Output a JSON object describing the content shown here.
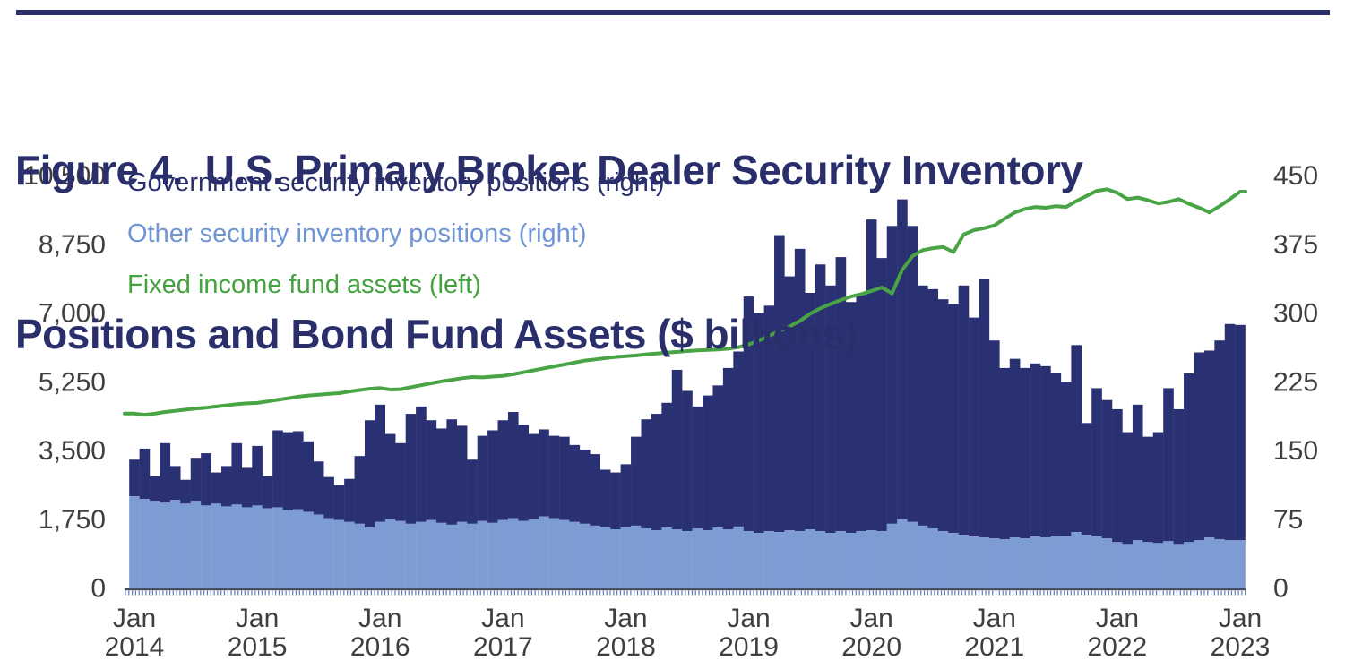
{
  "header": {
    "title_line1": "Figure 4.  U.S. Primary Broker Dealer Security Inventory",
    "title_line2": "Positions and Bond Fund Assets ($ billions)",
    "title_color": "#2a2f6b",
    "rule_color": "#2a2f6b"
  },
  "legend": {
    "items": [
      {
        "label": "Government security inventory positions (right)",
        "color": "#2a2f6b"
      },
      {
        "label": "Other security inventory positions (right)",
        "color": "#6f95d4"
      },
      {
        "label": "Fixed income fund assets (left)",
        "color": "#44a33f"
      }
    ]
  },
  "chart_data": {
    "type": "combo",
    "title": "Figure 4. U.S. Primary Broker Dealer Security Inventory Positions and Bond Fund Assets ($ billions)",
    "grid": "off",
    "background": "#ffffff",
    "x_axis": {
      "start": "2014-01",
      "interval": "monthly",
      "count": 109,
      "tick_labels": [
        {
          "month": "Jan",
          "year": "2014"
        },
        {
          "month": "Jan",
          "year": "2015"
        },
        {
          "month": "Jan",
          "year": "2016"
        },
        {
          "month": "Jan",
          "year": "2017"
        },
        {
          "month": "Jan",
          "year": "2018"
        },
        {
          "month": "Jan",
          "year": "2019"
        },
        {
          "month": "Jan",
          "year": "2020"
        },
        {
          "month": "Jan",
          "year": "2021"
        },
        {
          "month": "Jan",
          "year": "2022"
        },
        {
          "month": "Jan",
          "year": "2023"
        }
      ],
      "tick_color": "#3f3f3f",
      "baseline_color": "#4b4b5e",
      "minor_tick_color": "#5c7cbc"
    },
    "left_axis": {
      "range": [
        0,
        10500
      ],
      "ticks": [
        "10,500",
        "8,750",
        "7,000",
        "5,250",
        "3,500",
        "1,750",
        "0"
      ],
      "used_by": "Fixed income fund assets"
    },
    "right_axis": {
      "range": [
        0,
        450
      ],
      "ticks": [
        "450",
        "375",
        "300",
        "225",
        "150",
        "75",
        "0"
      ],
      "used_by": "Security inventory positions (stacked bars)"
    },
    "series": [
      {
        "name": "Other security inventory positions (right)",
        "type": "bar",
        "axis": "right",
        "stack_role": "base (0 up to value)",
        "color": "#7d9cd3",
        "values": [
          100,
          97,
          95,
          93,
          96,
          92,
          95,
          90,
          92,
          89,
          91,
          88,
          90,
          87,
          88,
          85,
          86,
          83,
          80,
          76,
          74,
          72,
          70,
          66,
          72,
          75,
          73,
          70,
          72,
          74,
          71,
          69,
          72,
          70,
          73,
          71,
          74,
          76,
          73,
          75,
          78,
          76,
          74,
          72,
          70,
          68,
          66,
          64,
          66,
          68,
          65,
          63,
          66,
          64,
          62,
          65,
          63,
          66,
          64,
          67,
          62,
          60,
          62,
          61,
          63,
          62,
          64,
          62,
          60,
          62,
          60,
          62,
          63,
          62,
          70,
          75,
          72,
          68,
          65,
          62,
          60,
          58,
          56,
          55,
          54,
          53,
          55,
          54,
          56,
          55,
          57,
          56,
          61,
          58,
          56,
          54,
          50,
          48,
          52,
          50,
          49,
          51,
          48,
          50,
          52,
          55,
          53,
          52,
          52
        ]
      },
      {
        "name": "Government security inventory positions (right)",
        "type": "bar",
        "axis": "right",
        "stack_role": "top of stack (values are combined top = other + government)",
        "color": "#2a3173",
        "values": [
          140,
          152,
          122,
          158,
          133,
          118,
          142,
          147,
          126,
          133,
          158,
          131,
          155,
          122,
          172,
          170,
          171,
          160,
          138,
          121,
          112,
          119,
          144,
          183,
          200,
          168,
          158,
          190,
          198,
          183,
          174,
          184,
          177,
          140,
          166,
          172,
          183,
          192,
          178,
          168,
          173,
          166,
          165,
          156,
          151,
          146,
          129,
          126,
          135,
          165,
          184,
          190,
          202,
          238,
          215,
          198,
          210,
          221,
          240,
          258,
          318,
          300,
          308,
          385,
          340,
          370,
          322,
          353,
          330,
          361,
          312,
          320,
          402,
          360,
          395,
          424,
          395,
          330,
          326,
          315,
          310,
          330,
          295,
          337,
          270,
          240,
          250,
          240,
          245,
          242,
          235,
          225,
          265,
          180,
          218,
          205,
          195,
          170,
          200,
          165,
          170,
          218,
          195,
          234,
          257,
          259,
          270,
          288,
          287
        ]
      },
      {
        "name": "Fixed income fund assets (left)",
        "type": "line",
        "axis": "left",
        "color": "#48a445",
        "stroke_width": 4,
        "values": [
          4440,
          4410,
          4440,
          4480,
          4510,
          4540,
          4570,
          4590,
          4620,
          4650,
          4680,
          4700,
          4710,
          4750,
          4790,
          4830,
          4870,
          4900,
          4920,
          4940,
          4960,
          5000,
          5040,
          5070,
          5090,
          5050,
          5060,
          5110,
          5160,
          5210,
          5260,
          5300,
          5340,
          5370,
          5360,
          5380,
          5400,
          5440,
          5490,
          5540,
          5590,
          5640,
          5690,
          5740,
          5790,
          5820,
          5850,
          5880,
          5900,
          5920,
          5950,
          5970,
          5990,
          6010,
          6030,
          6050,
          6060,
          6070,
          6090,
          6130,
          6200,
          6300,
          6420,
          6540,
          6660,
          6800,
          6980,
          7120,
          7230,
          7330,
          7420,
          7480,
          7560,
          7650,
          7500,
          8100,
          8450,
          8600,
          8650,
          8680,
          8550,
          9000,
          9110,
          9160,
          9230,
          9400,
          9560,
          9650,
          9700,
          9680,
          9720,
          9700,
          9850,
          9980,
          10110,
          10150,
          10060,
          9900,
          9940,
          9870,
          9790,
          9830,
          9900,
          9780,
          9680,
          9560,
          9720,
          9900,
          10090
        ]
      }
    ]
  }
}
